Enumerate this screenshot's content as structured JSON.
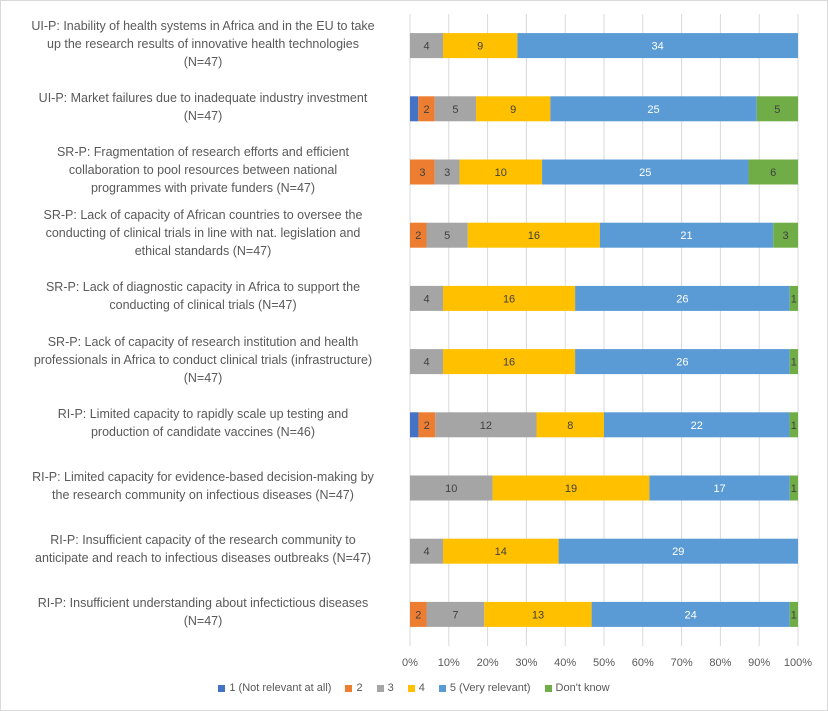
{
  "chart_data": {
    "type": "bar",
    "orientation": "horizontal",
    "stacked": "percent",
    "title": "",
    "xlabel": "",
    "ylabel": "",
    "xlim": [
      0,
      100
    ],
    "x_ticks": [
      "0%",
      "10%",
      "20%",
      "30%",
      "40%",
      "50%",
      "60%",
      "70%",
      "80%",
      "90%",
      "100%"
    ],
    "grid": true,
    "legend_position": "bottom",
    "categories": [
      "UI-P: Inability of health systems in Africa and in the EU to take up the research results of innovative health technologies (N=47)",
      "UI-P: Market failures due to inadequate industry investment (N=47)",
      "SR-P: Fragmentation of research efforts and efficient collaboration to pool resources between national programmes with private funders (N=47)",
      "SR-P: Lack of capacity of African countries to oversee the conducting of clinical trials in line with nat. legislation and ethical standards (N=47)",
      "SR-P: Lack of diagnostic capacity in Africa to support the conducting of clinical trials (N=47)",
      "SR-P: Lack of capacity of research institution and health professionals in Africa to conduct clinical trials (infrastructure) (N=47)",
      "RI-P: Limited capacity to rapidly scale up testing and production of candidate vaccines (N=46)",
      "RI-P: Limited capacity for evidence-based decision-making by the research community on infectious diseases (N=47)",
      "RI-P: Insufficient capacity of the research community to anticipate and reach to infectious diseases outbreaks (N=47)",
      "RI-P: Insufficient understanding about infectictious diseases (N=47)"
    ],
    "series": [
      {
        "name": "1 (Not relevant at all)",
        "color": "#4472c4",
        "label_color": "#ffffff",
        "values": [
          0,
          1,
          0,
          0,
          0,
          0,
          1,
          0,
          0,
          0
        ],
        "labels_shown": false
      },
      {
        "name": "2",
        "color": "#ed7d31",
        "label_color": "#404040",
        "values": [
          0,
          2,
          3,
          2,
          0,
          0,
          2,
          0,
          0,
          2
        ],
        "labels_shown": true
      },
      {
        "name": "3",
        "color": "#a5a5a5",
        "label_color": "#404040",
        "values": [
          4,
          5,
          3,
          5,
          4,
          4,
          12,
          10,
          4,
          7
        ],
        "labels_shown": true
      },
      {
        "name": "4",
        "color": "#ffc000",
        "label_color": "#404040",
        "values": [
          9,
          9,
          10,
          16,
          16,
          16,
          8,
          19,
          14,
          13
        ],
        "labels_shown": true
      },
      {
        "name": "5 (Very relevant)",
        "color": "#5b9bd5",
        "label_color": "#ffffff",
        "values": [
          34,
          25,
          25,
          21,
          26,
          26,
          22,
          17,
          29,
          24
        ],
        "labels_shown": true
      },
      {
        "name": "Don't know",
        "color": "#70ad47",
        "label_color": "#404040",
        "values": [
          0,
          5,
          6,
          3,
          1,
          1,
          1,
          1,
          0,
          1
        ],
        "labels_shown": true
      }
    ]
  },
  "category_lines": [
    [
      "UI-P: Inability of health systems in Africa and in the EU to take",
      "up the research results of innovative health technologies",
      "(N=47)"
    ],
    [
      "UI-P: Market failures due to inadequate industry investment",
      "(N=47)"
    ],
    [
      "SR-P: Fragmentation of research efforts and efficient",
      "collaboration to pool resources between national",
      "programmes with private funders (N=47)"
    ],
    [
      "SR-P: Lack of capacity of African countries to oversee the",
      "conducting of clinical trials in line with nat. legislation and",
      "ethical standards (N=47)"
    ],
    [
      "SR-P: Lack of diagnostic capacity in Africa to support the",
      "conducting of clinical trials (N=47)"
    ],
    [
      "SR-P: Lack of capacity of research institution and health",
      "professionals in Africa to conduct clinical trials (infrastructure)",
      "(N=47)"
    ],
    [
      "RI-P: Limited capacity to rapidly scale up testing and",
      "production of candidate vaccines (N=46)"
    ],
    [
      "RI-P: Limited capacity for evidence-based decision-making by",
      "the research community on infectious diseases (N=47)"
    ],
    [
      "RI-P: Insufficient capacity of the research community to",
      "anticipate and reach to infectious diseases outbreaks (N=47)"
    ],
    [
      "RI-P: Insufficient understanding about infectictious diseases",
      "(N=47)"
    ]
  ]
}
